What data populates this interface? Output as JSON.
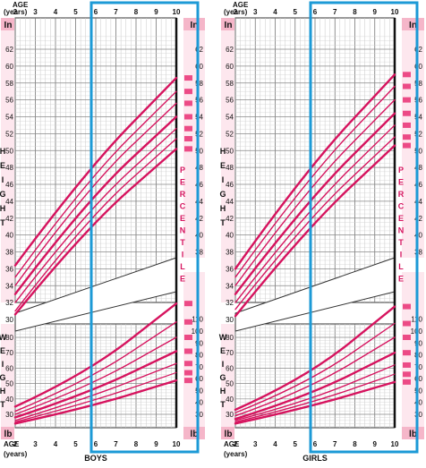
{
  "colors": {
    "curve": "#d6135e",
    "band": "#f7c3d3",
    "pinkbox": "#f5b6c9",
    "marker": "#ec4b86",
    "grid": "#9a9a9a",
    "highlight": "#1c9ad6",
    "axis_label": "#d6135e"
  },
  "labels": {
    "age": "AGE",
    "years": "(years)",
    "in": "In",
    "lb": "lb",
    "height_letters": [
      "H",
      "E",
      "I",
      "G",
      "H",
      "T"
    ],
    "weight_letters": [
      "W",
      "E",
      "I",
      "G",
      "H",
      "T"
    ],
    "percentile_letters": [
      "P",
      "E",
      "R",
      "C",
      "E",
      "N",
      "T",
      "I",
      "L",
      "E"
    ]
  },
  "chart_data": [
    {
      "type": "line",
      "title": "BOYS",
      "x_ticks": [
        "2",
        "3",
        "4",
        "5",
        "6",
        "7",
        "8",
        "9",
        "10"
      ],
      "xlim": [
        2,
        10
      ],
      "height_ticks_left": [
        "62",
        "60",
        "58",
        "56",
        "54",
        "52",
        "50",
        "48",
        "46",
        "44",
        "42",
        "40",
        "38",
        "36",
        "34",
        "32",
        "30"
      ],
      "height_ticks_right": [
        "62",
        "60",
        "58",
        "56",
        "54",
        "52",
        "50",
        "48",
        "46",
        "44",
        "42",
        "40",
        "38"
      ],
      "weight_ticks_left": [
        "80",
        "70",
        "60",
        "50",
        "40",
        "30"
      ],
      "weight_ticks_right": [
        "110",
        "100",
        "90",
        "80",
        "70",
        "60",
        "50",
        "40",
        "30"
      ],
      "ylim_height_in": [
        29,
        64
      ],
      "ylim_weight_lb": [
        18,
        116
      ],
      "highlight_age_range": [
        6,
        10
      ],
      "height_curves": [
        {
          "x": [
            2,
            5.5,
            10
          ],
          "y": [
            36.4,
            47.6,
            58.6
          ]
        },
        {
          "x": [
            2,
            5.5,
            10
          ],
          "y": [
            35.0,
            46.4,
            57.0
          ]
        },
        {
          "x": [
            2,
            5.5,
            10
          ],
          "y": [
            34.0,
            45.4,
            55.6
          ]
        },
        {
          "x": [
            2,
            5.5,
            10
          ],
          "y": [
            33.0,
            44.0,
            54.0
          ]
        },
        {
          "x": [
            2,
            5.5,
            10
          ],
          "y": [
            32.0,
            42.8,
            52.6
          ]
        },
        {
          "x": [
            2,
            5.5,
            10
          ],
          "y": [
            31.0,
            41.8,
            51.4
          ]
        },
        {
          "x": [
            2,
            5.5,
            10
          ],
          "y": [
            30.6,
            40.8,
            50.2
          ]
        }
      ],
      "weight_curves": [
        {
          "x": [
            2,
            5.5,
            10
          ],
          "y": [
            35,
            56,
            102
          ]
        },
        {
          "x": [
            2,
            5.5,
            10
          ],
          "y": [
            32,
            51,
            90
          ]
        },
        {
          "x": [
            2,
            5.5,
            10
          ],
          "y": [
            30,
            47,
            80
          ]
        },
        {
          "x": [
            2,
            5.5,
            10
          ],
          "y": [
            28,
            43,
            71
          ]
        },
        {
          "x": [
            2,
            5.5,
            10
          ],
          "y": [
            26,
            40,
            63
          ]
        },
        {
          "x": [
            2,
            5.5,
            10
          ],
          "y": [
            25,
            37,
            57
          ]
        },
        {
          "x": [
            2,
            5.5,
            10
          ],
          "y": [
            24,
            34,
            52
          ]
        }
      ]
    },
    {
      "type": "line",
      "title": "GIRLS",
      "x_ticks": [
        "2",
        "3",
        "4",
        "5",
        "6",
        "7",
        "8",
        "9",
        "10"
      ],
      "xlim": [
        2,
        10
      ],
      "height_ticks_left": [
        "62",
        "60",
        "58",
        "56",
        "54",
        "52",
        "50",
        "48",
        "46",
        "44",
        "42",
        "40",
        "38",
        "36",
        "34",
        "32",
        "30"
      ],
      "height_ticks_right": [
        "62",
        "60",
        "58",
        "56",
        "54",
        "52",
        "50",
        "48",
        "46",
        "44",
        "42",
        "40",
        "38"
      ],
      "weight_ticks_left": [
        "80",
        "70",
        "60",
        "50",
        "40",
        "30"
      ],
      "weight_ticks_right": [
        "110",
        "100",
        "90",
        "80",
        "70",
        "60",
        "50",
        "40",
        "30"
      ],
      "ylim_height_in": [
        29,
        64
      ],
      "ylim_weight_lb": [
        18,
        116
      ],
      "highlight_age_range": [
        6,
        10
      ],
      "height_curves": [
        {
          "x": [
            2,
            5.5,
            10
          ],
          "y": [
            36.0,
            47.6,
            59.0
          ]
        },
        {
          "x": [
            2,
            5.5,
            10
          ],
          "y": [
            35.0,
            46.4,
            57.6
          ]
        },
        {
          "x": [
            2,
            5.5,
            10
          ],
          "y": [
            34.0,
            45.2,
            56.0
          ]
        },
        {
          "x": [
            2,
            5.5,
            10
          ],
          "y": [
            33.0,
            43.8,
            54.4
          ]
        },
        {
          "x": [
            2,
            5.5,
            10
          ],
          "y": [
            32.0,
            42.6,
            53.0
          ]
        },
        {
          "x": [
            2,
            5.5,
            10
          ],
          "y": [
            31.2,
            41.6,
            51.6
          ]
        },
        {
          "x": [
            2,
            5.5,
            10
          ],
          "y": [
            30.4,
            40.6,
            50.6
          ]
        }
      ],
      "weight_curves": [
        {
          "x": [
            2,
            5.5,
            10
          ],
          "y": [
            33,
            53,
            100
          ]
        },
        {
          "x": [
            2,
            5.5,
            10
          ],
          "y": [
            31,
            49,
            89
          ]
        },
        {
          "x": [
            2,
            5.5,
            10
          ],
          "y": [
            29,
            45,
            80
          ]
        },
        {
          "x": [
            2,
            5.5,
            10
          ],
          "y": [
            27,
            41,
            70
          ]
        },
        {
          "x": [
            2,
            5.5,
            10
          ],
          "y": [
            26,
            38,
            62
          ]
        },
        {
          "x": [
            2,
            5.5,
            10
          ],
          "y": [
            25,
            36,
            56
          ]
        },
        {
          "x": [
            2,
            5.5,
            10
          ],
          "y": [
            24,
            34,
            51
          ]
        }
      ]
    }
  ]
}
